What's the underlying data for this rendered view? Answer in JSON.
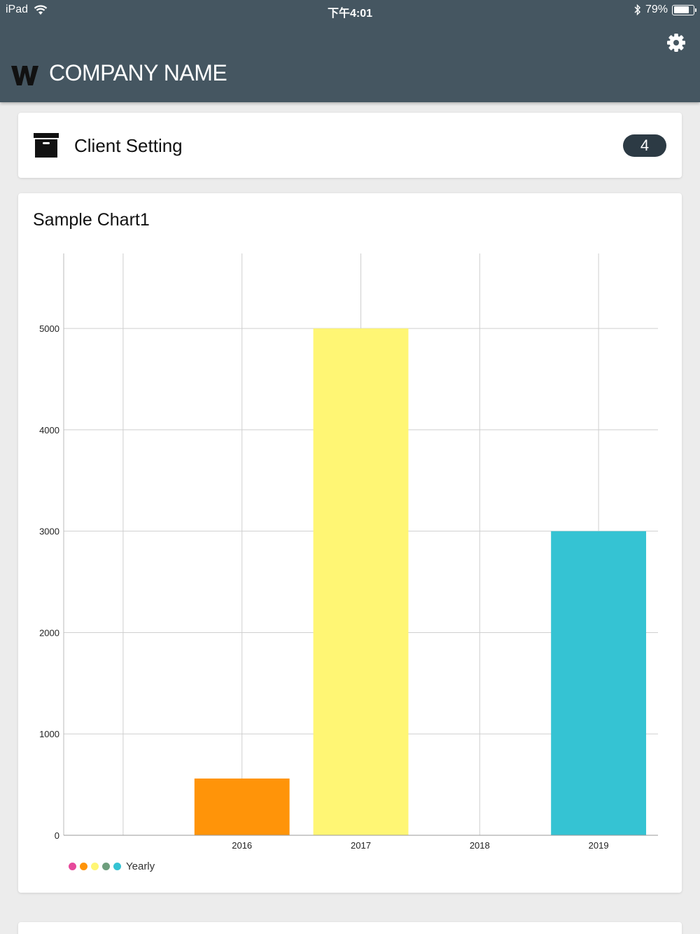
{
  "status_bar": {
    "device": "iPad",
    "time": "下午4:01",
    "battery": "79%",
    "battery_level": 0.79
  },
  "header": {
    "company_name": "COMPANY NAME",
    "logo_icon": "w-logo-icon",
    "settings_icon": "gear-icon"
  },
  "client_setting": {
    "label": "Client Setting",
    "count": "4",
    "icon": "archive-box-icon"
  },
  "chart_data": {
    "type": "bar",
    "title": "Sample Chart1",
    "categories": [
      "",
      "2016",
      "2017",
      "2018",
      "2019"
    ],
    "values": [
      0,
      560,
      5000,
      0,
      3000
    ],
    "colors": [
      "#e6499b",
      "#ff9409",
      "#fff674",
      "#6e9e7d",
      "#35c3d3"
    ],
    "ylim": [
      0,
      5740
    ],
    "yticks": [
      "0",
      "1000",
      "2000",
      "3000",
      "4000",
      "5000"
    ],
    "legend": {
      "label": "Yearly",
      "position": "bottom-left"
    },
    "grid": true
  },
  "colors": {
    "header": "#455661",
    "badge": "#2c3a44"
  }
}
